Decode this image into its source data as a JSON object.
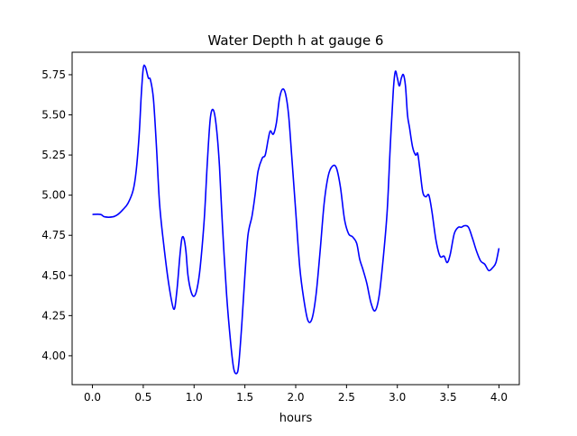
{
  "chart_data": {
    "type": "line",
    "title": "Water Depth h at gauge 6",
    "xlabel": "hours",
    "ylabel": "",
    "xlim": [
      -0.2,
      4.2
    ],
    "ylim": [
      3.82,
      5.89
    ],
    "xticks": [
      0.0,
      0.5,
      1.0,
      1.5,
      2.0,
      2.5,
      3.0,
      3.5,
      4.0
    ],
    "xtick_labels": [
      "0.0",
      "0.5",
      "1.0",
      "1.5",
      "2.0",
      "2.5",
      "3.0",
      "3.5",
      "4.0"
    ],
    "yticks": [
      4.0,
      4.25,
      4.5,
      4.75,
      5.0,
      5.25,
      5.5,
      5.75
    ],
    "ytick_labels": [
      "4.00",
      "4.25",
      "4.50",
      "4.75",
      "5.00",
      "5.25",
      "5.50",
      "5.75"
    ],
    "grid": false,
    "series": [
      {
        "color": "#0000ff",
        "x": [
          0.0,
          0.08,
          0.12,
          0.2,
          0.25,
          0.3,
          0.35,
          0.4,
          0.43,
          0.46,
          0.48,
          0.5,
          0.52,
          0.55,
          0.57,
          0.6,
          0.63,
          0.66,
          0.7,
          0.75,
          0.8,
          0.83,
          0.86,
          0.88,
          0.9,
          0.92,
          0.94,
          0.97,
          1.0,
          1.03,
          1.06,
          1.1,
          1.13,
          1.16,
          1.19,
          1.22,
          1.25,
          1.28,
          1.32,
          1.36,
          1.39,
          1.42,
          1.44,
          1.47,
          1.5,
          1.53,
          1.57,
          1.6,
          1.63,
          1.67,
          1.7,
          1.73,
          1.75,
          1.78,
          1.81,
          1.84,
          1.87,
          1.9,
          1.93,
          1.96,
          2.0,
          2.04,
          2.08,
          2.12,
          2.16,
          2.2,
          2.24,
          2.28,
          2.32,
          2.36,
          2.4,
          2.44,
          2.48,
          2.52,
          2.56,
          2.6,
          2.63,
          2.66,
          2.7,
          2.74,
          2.78,
          2.82,
          2.86,
          2.9,
          2.93,
          2.96,
          2.98,
          3.0,
          3.02,
          3.04,
          3.06,
          3.08,
          3.1,
          3.12,
          3.15,
          3.18,
          3.2,
          3.22,
          3.25,
          3.28,
          3.31,
          3.34,
          3.38,
          3.42,
          3.46,
          3.49,
          3.52,
          3.56,
          3.6,
          3.63,
          3.66,
          3.7,
          3.74,
          3.78,
          3.82,
          3.86,
          3.9,
          3.94,
          3.97,
          4.0
        ],
        "y": [
          4.88,
          4.88,
          4.865,
          4.865,
          4.88,
          4.91,
          4.95,
          5.03,
          5.15,
          5.38,
          5.62,
          5.79,
          5.8,
          5.73,
          5.72,
          5.6,
          5.3,
          4.95,
          4.7,
          4.45,
          4.29,
          4.4,
          4.62,
          4.73,
          4.73,
          4.65,
          4.5,
          4.4,
          4.37,
          4.42,
          4.55,
          4.85,
          5.2,
          5.48,
          5.53,
          5.42,
          5.18,
          4.8,
          4.38,
          4.08,
          3.92,
          3.89,
          3.95,
          4.2,
          4.5,
          4.75,
          4.87,
          5.0,
          5.15,
          5.23,
          5.25,
          5.35,
          5.4,
          5.38,
          5.45,
          5.6,
          5.66,
          5.63,
          5.5,
          5.25,
          4.9,
          4.55,
          4.35,
          4.22,
          4.23,
          4.38,
          4.65,
          4.95,
          5.12,
          5.18,
          5.17,
          5.05,
          4.85,
          4.76,
          4.74,
          4.7,
          4.6,
          4.54,
          4.45,
          4.33,
          4.28,
          4.37,
          4.6,
          4.9,
          5.3,
          5.65,
          5.77,
          5.73,
          5.68,
          5.73,
          5.75,
          5.68,
          5.5,
          5.42,
          5.3,
          5.25,
          5.26,
          5.17,
          5.02,
          4.99,
          5.0,
          4.9,
          4.72,
          4.62,
          4.62,
          4.58,
          4.63,
          4.76,
          4.8,
          4.8,
          4.81,
          4.8,
          4.73,
          4.65,
          4.59,
          4.57,
          4.53,
          4.55,
          4.58,
          4.67
        ]
      }
    ]
  }
}
